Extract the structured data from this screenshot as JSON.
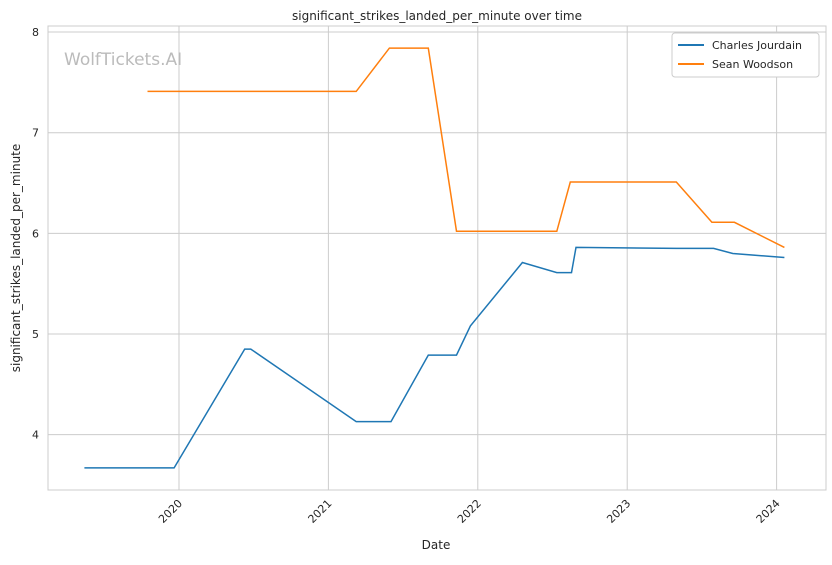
{
  "chart_data": {
    "type": "line",
    "title": "significant_strikes_landed_per_minute over time",
    "xlabel": "Date",
    "ylabel": "significant_strikes_landed_per_minute",
    "watermark": "WolfTickets.AI",
    "x_ticks": [
      "2020",
      "2021",
      "2022",
      "2023",
      "2024"
    ],
    "y_ticks": [
      "4",
      "5",
      "6",
      "7",
      "8"
    ],
    "ylim": [
      3.45,
      8.06
    ],
    "xlim": [
      "2019-02-15",
      "2024-05-01"
    ],
    "grid": true,
    "legend_position": "top-right",
    "series": [
      {
        "name": "Charles Jourdain",
        "color": "#1f77b4",
        "x": [
          "2019-05-15",
          "2019-12-20",
          "2020-06-10",
          "2020-06-25",
          "2021-03-10",
          "2021-06-03",
          "2021-09-02",
          "2021-11-10",
          "2021-12-14",
          "2022-04-20",
          "2022-07-13",
          "2022-08-18",
          "2022-08-29",
          "2023-05-01",
          "2023-07-31",
          "2023-09-16",
          "2024-01-20"
        ],
        "y": [
          3.67,
          3.67,
          4.85,
          4.85,
          4.13,
          4.13,
          4.79,
          4.79,
          5.08,
          5.71,
          5.61,
          5.61,
          5.86,
          5.85,
          5.85,
          5.8,
          5.76
        ]
      },
      {
        "name": "Sean Woodson",
        "color": "#ff7f0e",
        "x": [
          "2019-10-16",
          "2021-03-10",
          "2021-05-30",
          "2021-09-02",
          "2021-11-10",
          "2022-07-13",
          "2022-08-15",
          "2023-05-01",
          "2023-07-27",
          "2023-09-20",
          "2024-01-20"
        ],
        "y": [
          7.41,
          7.41,
          7.84,
          7.84,
          6.02,
          6.02,
          6.51,
          6.51,
          6.11,
          6.11,
          5.86
        ]
      }
    ]
  }
}
